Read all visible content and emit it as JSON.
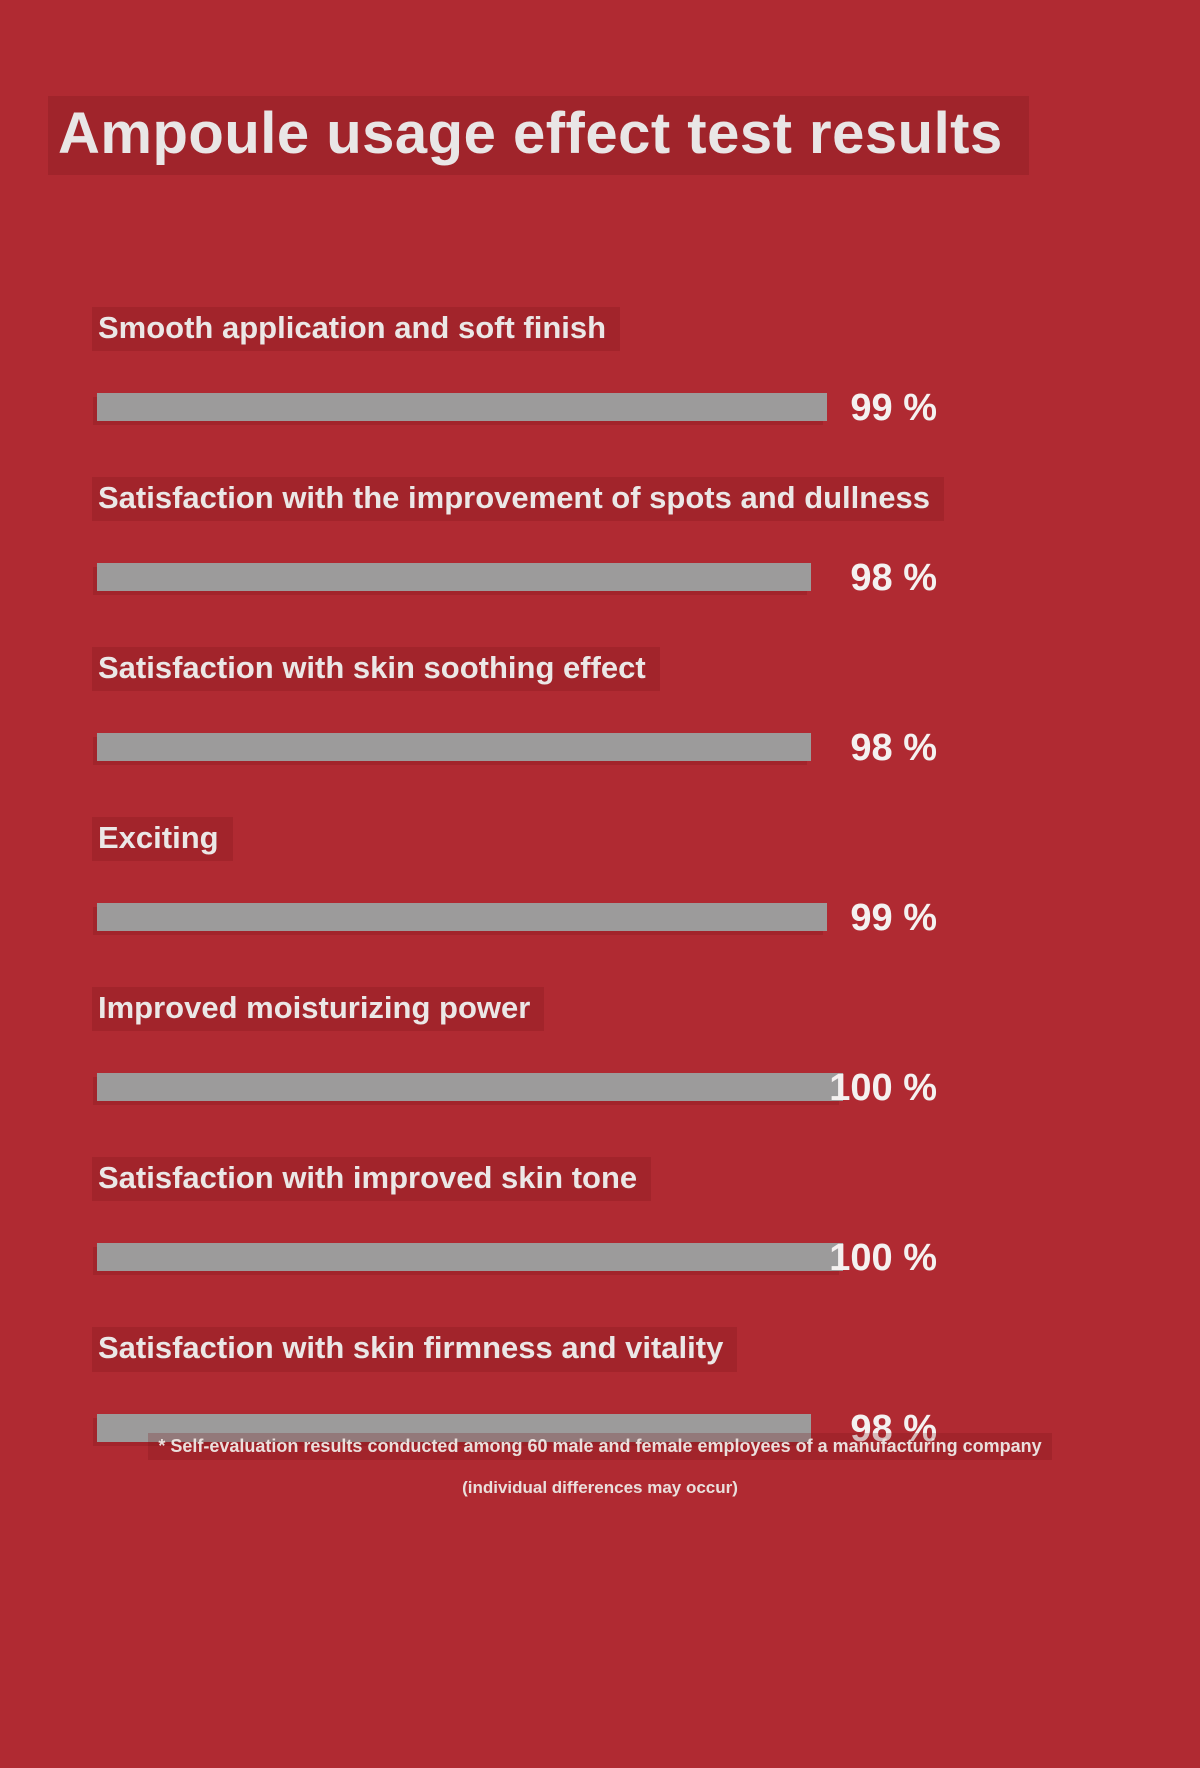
{
  "title": "Ampoule usage effect test results",
  "chart_data": {
    "type": "bar",
    "orientation": "horizontal",
    "title": "Ampoule usage effect test results",
    "unit": "%",
    "xlim": [
      0,
      100
    ],
    "categories": [
      "Smooth application and soft finish",
      "Satisfaction with the improvement of spots and dullness",
      "Satisfaction with skin soothing effect",
      "Exciting",
      "Improved moisturizing power",
      "Satisfaction with improved skin tone",
      "Satisfaction with skin firmness and vitality"
    ],
    "values": [
      99,
      98,
      98,
      99,
      100,
      100,
      98
    ],
    "value_labels": [
      "99 %",
      "98 %",
      "98 %",
      "99 %",
      "100 %",
      "100 %",
      "98 %"
    ],
    "grid": false,
    "legend": false
  },
  "footnotes": {
    "line1": "* Self-evaluation results conducted among 60 male and female employees of a manufacturing company",
    "line2": "(individual differences may occur)"
  },
  "colors": {
    "background": "#b02a32",
    "bar": "#9c9b9b",
    "text": "#ebe7e6",
    "value_text": "#f4f1f0",
    "highlight": "#7a1418"
  }
}
